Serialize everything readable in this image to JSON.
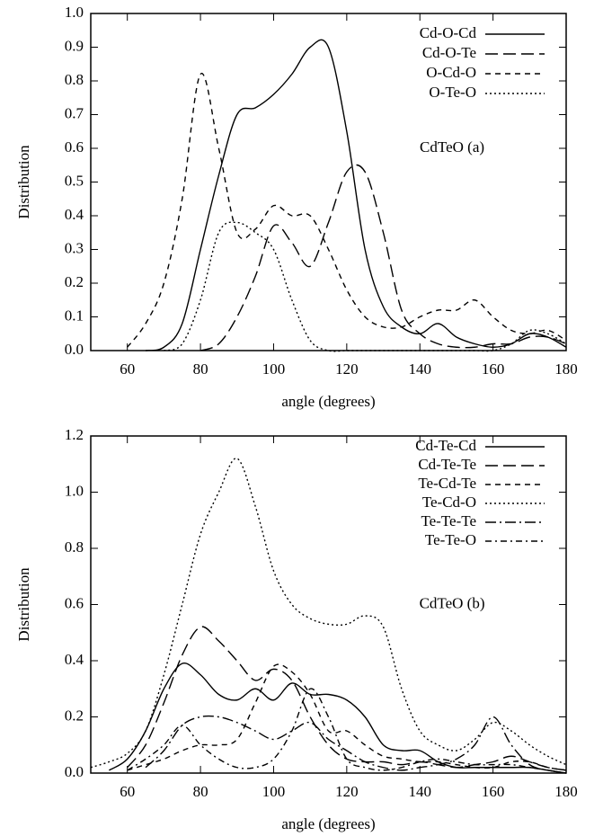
{
  "chart_data": [
    {
      "type": "line",
      "xlabel": "angle (degrees)",
      "ylabel": "Distribution",
      "annotation": "CdTeO (a)",
      "x": [
        50,
        55,
        60,
        65,
        70,
        75,
        80,
        85,
        90,
        95,
        100,
        105,
        110,
        115,
        120,
        125,
        130,
        135,
        140,
        145,
        150,
        155,
        160,
        165,
        170,
        175,
        180
      ],
      "xlim": [
        50,
        180
      ],
      "xticks": [
        60,
        80,
        100,
        120,
        140,
        160,
        180
      ],
      "ylim": [
        0,
        1
      ],
      "yticks": [
        {
          "value": 0,
          "label": "0.0"
        },
        {
          "value": 0.1,
          "label": "0.1"
        },
        {
          "value": 0.2,
          "label": "0.2"
        },
        {
          "value": 0.3,
          "label": "0.3"
        },
        {
          "value": 0.4,
          "label": "0.4"
        },
        {
          "value": 0.5,
          "label": "0.5"
        },
        {
          "value": 0.6,
          "label": "0.6"
        },
        {
          "value": 0.7,
          "label": "0.7"
        },
        {
          "value": 0.8,
          "label": "0.8"
        },
        {
          "value": 0.9,
          "label": "0.9"
        },
        {
          "value": 1,
          "label": "1.0"
        }
      ],
      "legend": "top-right",
      "series": [
        {
          "name": "Cd-O-Cd",
          "color": "#000000",
          "dash": "none",
          "values": [
            null,
            null,
            null,
            0,
            0.01,
            0.08,
            0.3,
            0.52,
            0.7,
            0.72,
            0.76,
            0.82,
            0.9,
            0.9,
            0.65,
            0.3,
            0.13,
            0.07,
            0.05,
            0.08,
            0.04,
            0.02,
            0.01,
            0.02,
            0.05,
            0.04,
            0.01
          ]
        },
        {
          "name": "Cd-O-Te",
          "color": "#000000",
          "dash": "14,6",
          "values": [
            null,
            null,
            null,
            null,
            null,
            null,
            0,
            0.02,
            0.1,
            0.22,
            0.37,
            0.32,
            0.25,
            0.38,
            0.53,
            0.53,
            0.35,
            0.12,
            0.05,
            0.02,
            0.01,
            0.01,
            0.02,
            0.02,
            0.04,
            0.04,
            0.02
          ]
        },
        {
          "name": "O-Cd-O",
          "color": "#000000",
          "dash": "6,5",
          "values": [
            null,
            null,
            0.01,
            0.08,
            0.2,
            0.45,
            0.82,
            0.6,
            0.35,
            0.36,
            0.43,
            0.4,
            0.4,
            0.3,
            0.18,
            0.1,
            0.07,
            0.07,
            0.1,
            0.12,
            0.12,
            0.15,
            0.1,
            0.06,
            0.05,
            0.06,
            0.03
          ]
        },
        {
          "name": "O-Te-O",
          "color": "#000000",
          "dash": "2,3",
          "values": [
            null,
            null,
            null,
            null,
            0,
            0.02,
            0.15,
            0.35,
            0.38,
            0.35,
            0.3,
            0.15,
            0.03,
            0,
            0,
            0,
            0,
            0,
            0,
            0,
            0,
            0,
            0,
            0.02,
            0.06,
            0.05,
            0.02
          ]
        }
      ]
    },
    {
      "type": "line",
      "xlabel": "angle (degrees)",
      "ylabel": "Distribution",
      "annotation": "CdTeO (b)",
      "x": [
        50,
        55,
        60,
        65,
        70,
        75,
        80,
        85,
        90,
        95,
        100,
        105,
        110,
        115,
        120,
        125,
        130,
        135,
        140,
        145,
        150,
        155,
        160,
        165,
        170,
        175,
        180
      ],
      "xlim": [
        50,
        180
      ],
      "xticks": [
        60,
        80,
        100,
        120,
        140,
        160,
        180
      ],
      "ylim": [
        0,
        1.2
      ],
      "yticks": [
        {
          "value": 0,
          "label": "0.0"
        },
        {
          "value": 0.2,
          "label": "0.2"
        },
        {
          "value": 0.4,
          "label": "0.4"
        },
        {
          "value": 0.6,
          "label": "0.6"
        },
        {
          "value": 0.8,
          "label": "0.8"
        },
        {
          "value": 1,
          "label": "1.0"
        },
        {
          "value": 1.2,
          "label": "1.2"
        }
      ],
      "legend": "top-right",
      "series": [
        {
          "name": "Cd-Te-Cd",
          "color": "#000000",
          "dash": "none",
          "values": [
            null,
            0.01,
            0.05,
            0.15,
            0.3,
            0.39,
            0.35,
            0.28,
            0.26,
            0.3,
            0.26,
            0.32,
            0.28,
            0.28,
            0.26,
            0.2,
            0.1,
            0.08,
            0.08,
            0.04,
            0.02,
            0.02,
            0.02,
            0.02,
            0.02,
            0.01,
            0
          ]
        },
        {
          "name": "Cd-Te-Te",
          "color": "#000000",
          "dash": "14,6",
          "values": [
            null,
            null,
            0.02,
            0.1,
            0.25,
            0.42,
            0.52,
            0.47,
            0.4,
            0.33,
            0.37,
            0.33,
            0.2,
            0.1,
            0.05,
            0.04,
            0.04,
            0.03,
            0.04,
            0.03,
            0.02,
            0.03,
            0.04,
            0.06,
            0.04,
            0.02,
            0.01
          ]
        },
        {
          "name": "Te-Cd-Te",
          "color": "#000000",
          "dash": "6,5",
          "values": [
            null,
            null,
            0.01,
            0.03,
            0.05,
            0.08,
            0.1,
            0.1,
            0.12,
            0.25,
            0.38,
            0.36,
            0.28,
            0.15,
            0.15,
            0.1,
            0.06,
            0.05,
            0.04,
            0.04,
            0.03,
            0.02,
            0.02,
            0.04,
            0.04,
            0.02,
            0.01
          ]
        },
        {
          "name": "Te-Cd-O",
          "color": "#000000",
          "dash": "2,3",
          "values": [
            0.02,
            0.04,
            0.07,
            0.15,
            0.35,
            0.6,
            0.85,
            1.0,
            1.12,
            0.95,
            0.72,
            0.6,
            0.55,
            0.53,
            0.53,
            0.56,
            0.52,
            0.3,
            0.15,
            0.1,
            0.08,
            0.12,
            0.18,
            0.15,
            0.1,
            0.06,
            0.03
          ]
        },
        {
          "name": "Te-Te-Te",
          "color": "#000000",
          "dash": "12,4,2,4",
          "values": [
            null,
            null,
            null,
            0.02,
            0.08,
            0.17,
            0.2,
            0.2,
            0.18,
            0.15,
            0.12,
            0.15,
            0.18,
            0.12,
            0.08,
            0.04,
            0.02,
            0.01,
            0.02,
            0.03,
            0.05,
            0.1,
            0.2,
            0.1,
            0.03,
            0.01,
            0
          ]
        },
        {
          "name": "Te-Te-O",
          "color": "#000000",
          "dash": "7,4,2,4",
          "values": [
            null,
            null,
            0.01,
            0.05,
            0.1,
            0.17,
            0.1,
            0.05,
            0.02,
            0.02,
            0.05,
            0.15,
            0.3,
            0.2,
            0.05,
            0.02,
            0.01,
            0.02,
            0.04,
            0.05,
            0.04,
            0.03,
            0.03,
            0.03,
            0.02,
            0.01,
            0
          ]
        }
      ]
    }
  ]
}
